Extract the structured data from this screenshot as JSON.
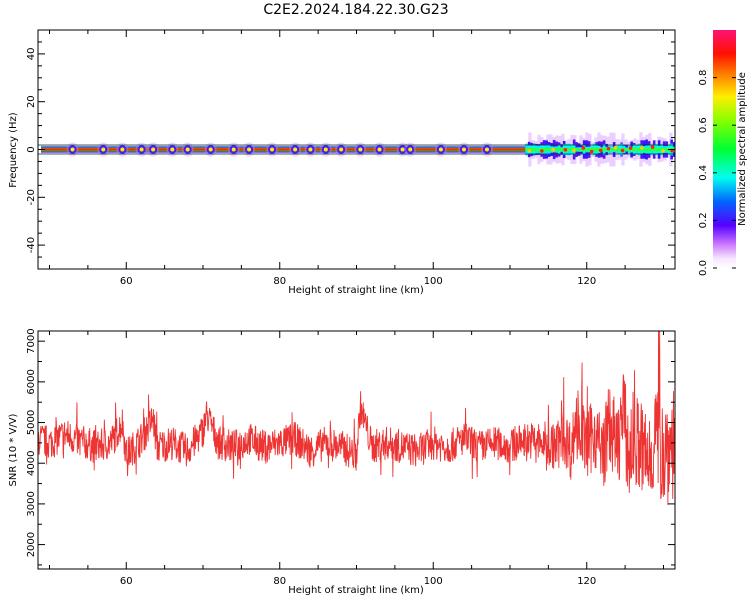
{
  "title": "C2E2.2024.184.22.30.G23",
  "chart_data": [
    {
      "type": "heatmap",
      "xlabel": "Height of straight line (km)",
      "ylabel": "Frequency (Hz)",
      "xlim": [
        48.5,
        131.5
      ],
      "ylim": [
        -50,
        50
      ],
      "x_ticks": [
        60,
        80,
        100,
        120
      ],
      "y_ticks": [
        -40,
        -20,
        0,
        20,
        40
      ],
      "y_tick_labels": [
        "-40",
        "-20",
        "0",
        "20",
        "40"
      ],
      "colorbar": {
        "label": "Normalized spectral amplitude",
        "range": [
          0,
          1
        ],
        "ticks": [
          0.0,
          0.2,
          0.4,
          0.6,
          0.8
        ],
        "tick_labels": [
          "0.0",
          "0.2",
          "0.4",
          "0.6",
          "0.8"
        ],
        "colormap": "gist_rainbow"
      },
      "ridge": {
        "frequency_hz": 0,
        "peak_amplitude": 0.9,
        "noisy_from_km": 112
      },
      "scatter_spots_km": [
        53,
        57,
        59.5,
        62,
        63.5,
        66,
        68,
        71,
        74,
        76,
        79,
        82,
        84,
        86,
        88,
        90.5,
        93,
        96,
        97,
        101,
        104,
        107
      ],
      "grid": false
    },
    {
      "type": "line",
      "xlabel": "Height of straight line (km)",
      "ylabel": "SNR (10 * V/V)",
      "xlim": [
        48.5,
        131.5
      ],
      "ylim": [
        1400,
        7250
      ],
      "x_ticks": [
        60,
        80,
        100,
        120
      ],
      "y_ticks": [
        2000,
        3000,
        4000,
        5000,
        6000,
        7000
      ],
      "color": "#ee3333",
      "grid": false,
      "series": [
        {
          "x": [
            48.5,
            50,
            52,
            54,
            56,
            58,
            59.5,
            60,
            62,
            63.5,
            64,
            66,
            68,
            70,
            70.5,
            72,
            74,
            76,
            78,
            80,
            82,
            84,
            86,
            88,
            90,
            90.5,
            92,
            94,
            96,
            98,
            100,
            102,
            104,
            106,
            108,
            110,
            112,
            114,
            116,
            117,
            118,
            118.7,
            120,
            121,
            122,
            123,
            124,
            124.7,
            125.5,
            126,
            127,
            128,
            129,
            129.8,
            130.5,
            131.5
          ],
          "y": [
            4600,
            4500,
            4700,
            4550,
            4400,
            4500,
            5000,
            4200,
            4600,
            5100,
            4400,
            4500,
            4300,
            4800,
            5200,
            4500,
            4400,
            4600,
            4400,
            4500,
            4600,
            4300,
            4500,
            4400,
            4200,
            5400,
            4400,
            4500,
            4400,
            4300,
            4500,
            4400,
            4600,
            4400,
            4500,
            4400,
            4600,
            4500,
            4400,
            4700,
            4300,
            5200,
            4400,
            4800,
            4200,
            5000,
            4300,
            5400,
            4100,
            4600,
            4400,
            4000,
            4800,
            4300,
            4400,
            4600
          ]
        }
      ]
    }
  ]
}
